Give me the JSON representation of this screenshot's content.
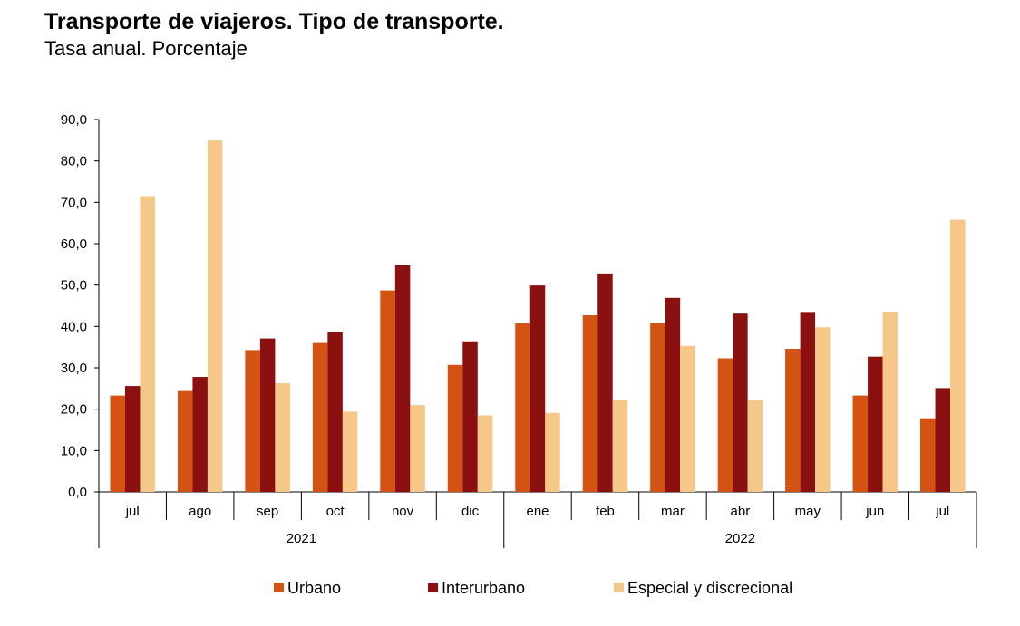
{
  "chart_data": {
    "type": "bar",
    "title": "Transporte de viajeros. Tipo de transporte.",
    "subtitle": "Tasa anual. Porcentaje",
    "categories": [
      "jul",
      "ago",
      "sep",
      "oct",
      "nov",
      "dic",
      "ene",
      "feb",
      "mar",
      "abr",
      "may",
      "jun",
      "jul"
    ],
    "groups": [
      {
        "label": "2021",
        "count": 6
      },
      {
        "label": "2022",
        "count": 7
      }
    ],
    "y_ticks": [
      "0,0",
      "10,0",
      "20,0",
      "30,0",
      "40,0",
      "50,0",
      "60,0",
      "70,0",
      "80,0",
      "90,0"
    ],
    "ylim": [
      0,
      90
    ],
    "legend_position": "bottom",
    "series": [
      {
        "name": "Urbano",
        "color": "#D55312",
        "values": [
          23.3,
          24.4,
          34.3,
          36.0,
          48.7,
          30.7,
          40.8,
          42.7,
          40.8,
          32.3,
          34.6,
          23.3,
          17.8
        ]
      },
      {
        "name": "Interurbano",
        "color": "#8B1111",
        "values": [
          25.6,
          27.8,
          37.1,
          38.6,
          54.8,
          36.4,
          49.9,
          52.8,
          46.9,
          43.1,
          43.5,
          32.7,
          25.1
        ]
      },
      {
        "name": "Especial y discrecional",
        "color": "#F5C88A",
        "values": [
          71.5,
          85.0,
          26.3,
          19.4,
          21.0,
          18.5,
          19.1,
          22.3,
          35.3,
          22.1,
          39.8,
          43.6,
          65.8
        ]
      }
    ]
  }
}
